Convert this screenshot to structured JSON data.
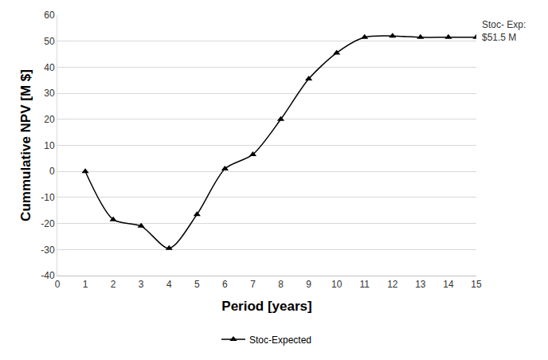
{
  "chart_data": {
    "type": "line",
    "x_label": "Period [years]",
    "y_label": "Cummulative NPV [M $]",
    "series": [
      {
        "name": "Stoc-Expected",
        "color": "#000000",
        "marker": "triangle-up",
        "line_style": "solid",
        "x": [
          1,
          2,
          3,
          4,
          5,
          6,
          7,
          8,
          9,
          10,
          11,
          12,
          13,
          14,
          15
        ],
        "values": [
          0,
          -18.5,
          -21,
          -29.5,
          -16.5,
          1,
          6.5,
          20,
          35.5,
          45.5,
          51.5,
          52,
          51.5,
          51.5,
          51.5
        ]
      }
    ],
    "annotations": [
      {
        "lines": [
          "Stoc- Exp:",
          "$51.5 M"
        ]
      }
    ],
    "xlim": [
      0,
      15
    ],
    "xticks": [
      0,
      1,
      2,
      3,
      4,
      5,
      6,
      7,
      8,
      9,
      10,
      11,
      12,
      13,
      14,
      15
    ],
    "ylim": [
      -40,
      60
    ],
    "yticks": [
      -40,
      -30,
      -20,
      -10,
      0,
      10,
      20,
      30,
      40,
      50,
      60
    ],
    "grid": true,
    "legend": "bottom"
  }
}
